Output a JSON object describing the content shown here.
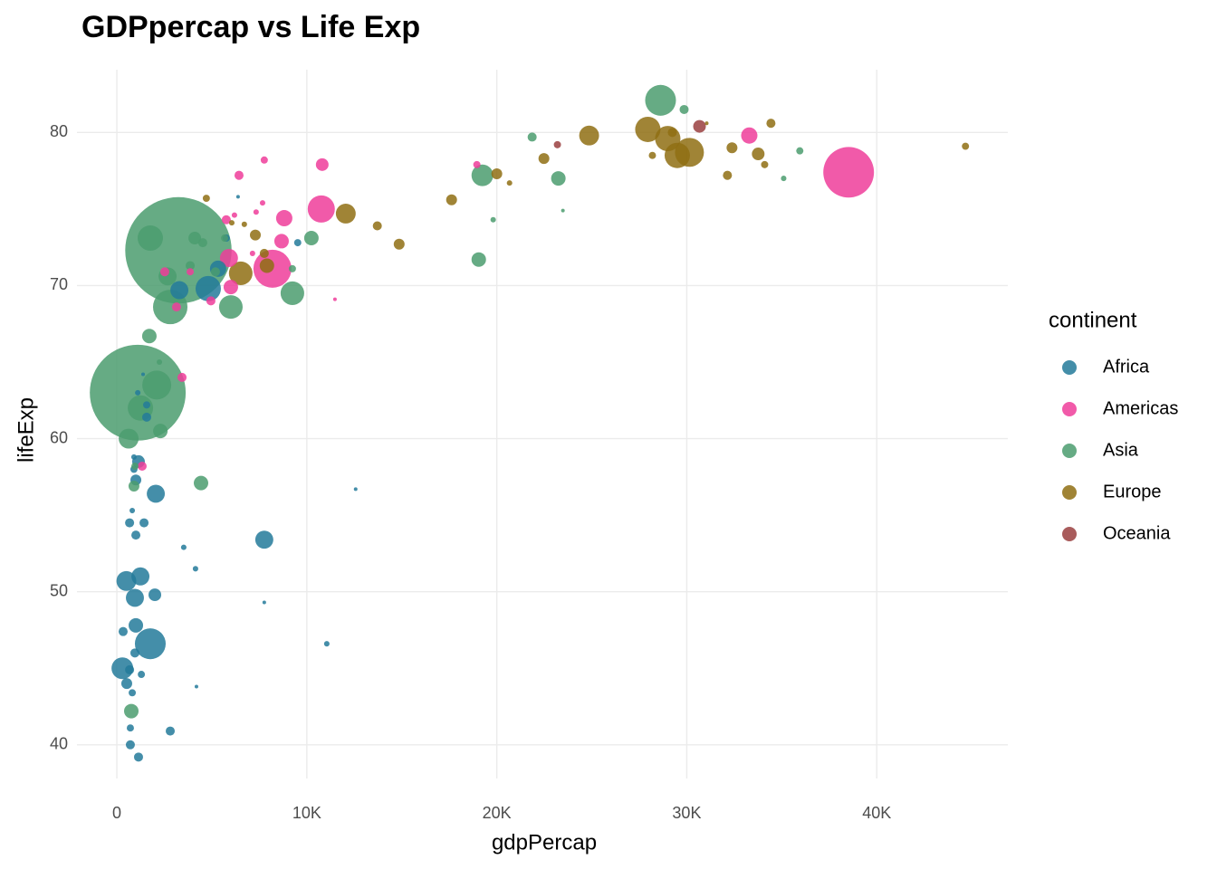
{
  "chart_data": {
    "type": "bubble",
    "title": "GDPpercap vs Life Exp",
    "x_label": "gdpPercap",
    "y_label": "lifeExp",
    "legend_title": "continent",
    "legend_position": "right",
    "grid": true,
    "xlim": [
      -2100,
      46900
    ],
    "xticks": [
      0,
      {
        "value": 10000,
        "label": "10K"
      },
      {
        "value": 20000,
        "label": "20K"
      },
      {
        "value": 30000,
        "label": "30K"
      },
      {
        "value": 40000,
        "label": "40K"
      }
    ],
    "ylim": [
      37.8,
      84.1
    ],
    "yticks": [
      40,
      50,
      60,
      70,
      80
    ],
    "series": [
      {
        "name": "Africa",
        "color": "#237a9a",
        "x": [
          290,
          500,
          1240,
          950,
          1760,
          1000,
          2050,
          7760,
          1140,
          1000,
          1570,
          670,
          1430,
          1000,
          2000,
          2810,
          1140,
          710,
          710,
          670,
          520,
          810,
          1290,
          950,
          330,
          3520,
          4140,
          4190,
          7760,
          11050,
          12570,
          3290,
          4810,
          5330,
          9520,
          5760,
          810,
          900,
          1100,
          900,
          1570,
          6380,
          1380
        ],
        "y": [
          45.0,
          50.7,
          51.0,
          49.6,
          46.6,
          47.8,
          56.4,
          53.4,
          58.5,
          57.3,
          61.4,
          54.5,
          54.5,
          53.7,
          49.8,
          40.9,
          39.2,
          40.0,
          41.1,
          44.9,
          44.0,
          43.4,
          44.6,
          46.0,
          47.4,
          52.9,
          51.5,
          43.8,
          49.3,
          46.6,
          56.7,
          69.7,
          69.8,
          71.1,
          72.8,
          73.1,
          55.3,
          58.8,
          63.0,
          58.0,
          62.2,
          75.8,
          64.2
        ],
        "size": [
          43,
          35,
          28,
          28,
          94,
          16.5,
          28,
          28,
          11.8,
          7.9,
          4.8,
          4.8,
          4.8,
          4.8,
          11.8,
          4.8,
          4.8,
          4.8,
          2.4,
          4.8,
          7.9,
          2.4,
          2.4,
          4.8,
          4.8,
          0.9,
          0.9,
          0.1,
          0.1,
          0.9,
          0.1,
          28,
          61,
          22,
          2.4,
          2.4,
          0.9,
          0.9,
          0.9,
          2.4,
          2.4,
          0.1,
          0.1
        ]
      },
      {
        "name": "Americas",
        "color": "#ee3d9a",
        "x": [
          38520,
          33290,
          8190,
          10760,
          10810,
          8810,
          8670,
          5900,
          6000,
          7760,
          6430,
          7670,
          5760,
          7330,
          3860,
          3140,
          2520,
          4950,
          3430,
          1330,
          18950,
          11480,
          6190,
          7140
        ],
        "y": [
          77.4,
          79.8,
          71.1,
          75.0,
          77.9,
          74.4,
          72.9,
          71.8,
          69.9,
          78.2,
          77.2,
          75.4,
          74.3,
          74.8,
          70.9,
          68.6,
          70.9,
          69.0,
          64.0,
          58.2,
          77.9,
          69.1,
          74.6,
          72.1
        ],
        "size": [
          274,
          22,
          149,
          71,
          11.8,
          22,
          16.5,
          28,
          16.5,
          2.4,
          4.8,
          0.9,
          4.8,
          0.9,
          2.4,
          4.8,
          4.8,
          4.8,
          4.8,
          4.8,
          2.4,
          0.1,
          0.9,
          0.9
        ]
      },
      {
        "name": "Asia",
        "color": "#4b9c6f",
        "x": [
          3240,
          1100,
          28620,
          19240,
          19050,
          23240,
          9240,
          10240,
          6000,
          2810,
          1760,
          2100,
          1240,
          620,
          1710,
          4430,
          2290,
          2670,
          4100,
          760,
          900,
          950,
          29860,
          21860,
          19810,
          23480,
          35950,
          35100,
          9240,
          5190,
          4520,
          3860,
          2240,
          5670
        ],
        "y": [
          72.3,
          63.0,
          82.1,
          77.2,
          71.7,
          77.0,
          69.5,
          73.1,
          68.6,
          68.6,
          73.1,
          63.5,
          62.0,
          60.0,
          66.7,
          57.1,
          60.5,
          70.6,
          73.1,
          42.2,
          56.9,
          58.2,
          81.5,
          79.7,
          74.3,
          74.9,
          78.8,
          77.0,
          71.1,
          70.9,
          72.8,
          71.3,
          65.0,
          73.1
        ],
        "size": [
          1280,
          1034,
          94,
          43,
          16.5,
          16.5,
          52,
          16.5,
          52,
          120,
          61,
          82,
          61,
          35,
          16.5,
          16.5,
          16.5,
          28,
          11.8,
          16.5,
          7.9,
          2.4,
          4.8,
          4.8,
          0.9,
          0.1,
          2.4,
          0.9,
          2.4,
          4.8,
          4.8,
          4.8,
          0.9,
          2.4
        ]
      },
      {
        "name": "Europe",
        "color": "#8f6e13",
        "x": [
          30140,
          29000,
          27950,
          29500,
          24860,
          6520,
          12050,
          7900,
          14860,
          17620,
          13710,
          20000,
          22480,
          32380,
          33760,
          34430,
          44670,
          32140,
          34100,
          29240,
          28190,
          7290,
          7760,
          4710,
          6050,
          20670,
          31050,
          6710
        ],
        "y": [
          78.7,
          79.6,
          80.2,
          78.5,
          79.8,
          70.8,
          74.7,
          71.3,
          72.7,
          75.6,
          73.9,
          77.3,
          78.3,
          79.0,
          78.6,
          80.6,
          79.1,
          77.2,
          77.9,
          80.0,
          78.5,
          73.3,
          72.1,
          75.7,
          74.1,
          76.7,
          80.6,
          74.0
        ],
        "size": [
          82,
          61,
          61,
          61,
          35,
          52,
          35,
          16.5,
          7.9,
          7.9,
          4.8,
          7.9,
          7.9,
          7.9,
          11.8,
          4.8,
          2.4,
          4.8,
          2.4,
          4.8,
          2.4,
          7.9,
          4.8,
          2.4,
          0.9,
          0.9,
          0.1,
          0.9
        ]
      },
      {
        "name": "Oceania",
        "color": "#9a3f3f",
        "x": [
          30670,
          23190
        ],
        "y": [
          80.4,
          79.2
        ],
        "size": [
          11.8,
          2.4
        ]
      }
    ]
  }
}
